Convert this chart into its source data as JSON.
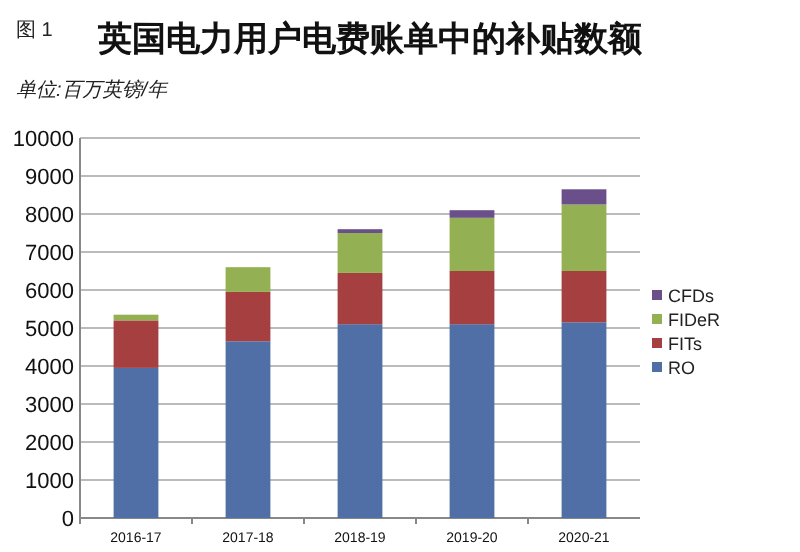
{
  "chart_data": {
    "type": "bar",
    "stacked": true,
    "title": "英国电力用户电费账单中的补贴数额",
    "ylabel": "单位:百万英镑/年",
    "annotations": [
      "图 1"
    ],
    "categories": [
      "2016-17",
      "2017-18",
      "2018-19",
      "2019-20",
      "2020-21"
    ],
    "series": [
      {
        "name": "RO",
        "color": "#4f6fa6",
        "values": [
          3950,
          4650,
          5100,
          5100,
          5150
        ]
      },
      {
        "name": "FITs",
        "color": "#a63f3f",
        "values": [
          1250,
          1300,
          1350,
          1400,
          1350
        ]
      },
      {
        "name": "FIDeR",
        "color": "#93b052",
        "values": [
          150,
          650,
          1050,
          1400,
          1750
        ]
      },
      {
        "name": "CFDs",
        "color": "#6a4f8a",
        "values": [
          0,
          0,
          100,
          200,
          400
        ]
      }
    ],
    "ylim": [
      0,
      10000
    ],
    "yticks": [
      0,
      1000,
      2000,
      3000,
      4000,
      5000,
      6000,
      7000,
      8000,
      9000,
      10000
    ],
    "grid": "y",
    "legend": "right"
  }
}
